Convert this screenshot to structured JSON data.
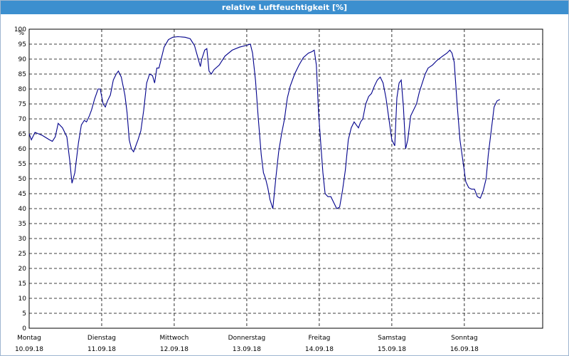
{
  "window": {
    "title": "relative Luftfeuchtigkeit [%]"
  },
  "chart_data": {
    "type": "line",
    "title": "relative Luftfeuchtigkeit [%]",
    "y_unit_label": "%",
    "ylim": [
      0,
      100
    ],
    "y_ticks": [
      "0",
      "5",
      "10",
      "15",
      "20",
      "25",
      "30",
      "35",
      "40",
      "45",
      "50",
      "55",
      "60",
      "65",
      "70",
      "75",
      "80",
      "85",
      "90",
      "95",
      "100"
    ],
    "x_days": [
      {
        "day": "Montag",
        "date": "10.09.18"
      },
      {
        "day": "Dienstag",
        "date": "11.09.18"
      },
      {
        "day": "Mittwoch",
        "date": "12.09.18"
      },
      {
        "day": "Donnerstag",
        "date": "13.09.18"
      },
      {
        "day": "Freitag",
        "date": "14.09.18"
      },
      {
        "day": "Samstag",
        "date": "15.09.18"
      },
      {
        "day": "Sonntag",
        "date": "16.09.18"
      }
    ],
    "xlim_days": [
      0,
      7.08
    ],
    "grid": true,
    "line_color": "#00008b",
    "series": [
      {
        "points": [
          [
            0.0,
            65
          ],
          [
            0.03,
            63
          ],
          [
            0.08,
            65.5
          ],
          [
            0.18,
            64.5
          ],
          [
            0.28,
            63
          ],
          [
            0.32,
            62.5
          ],
          [
            0.36,
            64
          ],
          [
            0.4,
            68.5
          ],
          [
            0.46,
            67
          ],
          [
            0.52,
            64
          ],
          [
            0.56,
            56
          ],
          [
            0.59,
            48.5
          ],
          [
            0.63,
            52
          ],
          [
            0.68,
            62
          ],
          [
            0.72,
            68
          ],
          [
            0.76,
            69.5
          ],
          [
            0.79,
            69
          ],
          [
            0.83,
            71
          ],
          [
            0.86,
            73
          ],
          [
            0.9,
            76.5
          ],
          [
            0.95,
            80
          ],
          [
            0.98,
            80
          ],
          [
            1.02,
            75
          ],
          [
            1.05,
            74
          ],
          [
            1.08,
            76
          ],
          [
            1.12,
            78
          ],
          [
            1.16,
            83
          ],
          [
            1.2,
            85
          ],
          [
            1.23,
            86
          ],
          [
            1.27,
            84
          ],
          [
            1.32,
            78
          ],
          [
            1.35,
            72
          ],
          [
            1.38,
            63
          ],
          [
            1.41,
            60
          ],
          [
            1.44,
            59
          ],
          [
            1.47,
            61
          ],
          [
            1.5,
            63
          ],
          [
            1.54,
            66
          ],
          [
            1.58,
            73
          ],
          [
            1.62,
            82
          ],
          [
            1.66,
            85
          ],
          [
            1.7,
            84.5
          ],
          [
            1.73,
            82
          ],
          [
            1.76,
            87
          ],
          [
            1.79,
            87
          ],
          [
            1.82,
            90
          ],
          [
            1.86,
            94
          ],
          [
            1.92,
            96.5
          ],
          [
            1.98,
            97.3
          ],
          [
            2.05,
            97.5
          ],
          [
            2.15,
            97.3
          ],
          [
            2.22,
            96.8
          ],
          [
            2.28,
            94.5
          ],
          [
            2.32,
            91
          ],
          [
            2.36,
            87.5
          ],
          [
            2.38,
            90
          ],
          [
            2.42,
            93
          ],
          [
            2.45,
            93.5
          ],
          [
            2.48,
            86
          ],
          [
            2.51,
            85
          ],
          [
            2.55,
            86.5
          ],
          [
            2.62,
            88
          ],
          [
            2.7,
            91
          ],
          [
            2.8,
            93
          ],
          [
            2.9,
            94
          ],
          [
            2.98,
            94.5
          ],
          [
            3.05,
            95
          ],
          [
            3.08,
            92
          ],
          [
            3.12,
            83
          ],
          [
            3.16,
            70
          ],
          [
            3.2,
            58
          ],
          [
            3.23,
            52
          ],
          [
            3.26,
            50
          ],
          [
            3.29,
            47
          ],
          [
            3.32,
            43
          ],
          [
            3.36,
            40
          ],
          [
            3.4,
            50
          ],
          [
            3.44,
            59
          ],
          [
            3.48,
            65
          ],
          [
            3.52,
            70
          ],
          [
            3.56,
            77
          ],
          [
            3.6,
            81
          ],
          [
            3.66,
            85
          ],
          [
            3.72,
            88
          ],
          [
            3.78,
            90.5
          ],
          [
            3.85,
            92
          ],
          [
            3.9,
            92.5
          ],
          [
            3.93,
            93
          ],
          [
            3.96,
            88
          ],
          [
            3.99,
            72
          ],
          [
            4.02,
            62
          ],
          [
            4.05,
            52
          ],
          [
            4.08,
            45
          ],
          [
            4.12,
            44
          ],
          [
            4.16,
            44
          ],
          [
            4.2,
            42
          ],
          [
            4.24,
            40
          ],
          [
            4.28,
            40.5
          ],
          [
            4.32,
            46
          ],
          [
            4.36,
            53
          ],
          [
            4.4,
            63
          ],
          [
            4.44,
            67
          ],
          [
            4.48,
            69
          ],
          [
            4.51,
            68
          ],
          [
            4.54,
            67
          ],
          [
            4.57,
            69
          ],
          [
            4.6,
            70
          ],
          [
            4.64,
            75
          ],
          [
            4.68,
            77.5
          ],
          [
            4.72,
            78.5
          ],
          [
            4.76,
            81
          ],
          [
            4.8,
            83
          ],
          [
            4.84,
            84
          ],
          [
            4.88,
            82
          ],
          [
            4.92,
            77
          ],
          [
            4.96,
            70
          ],
          [
            5.0,
            63
          ],
          [
            5.04,
            61
          ],
          [
            5.07,
            77
          ],
          [
            5.1,
            82
          ],
          [
            5.13,
            83
          ],
          [
            5.16,
            74
          ],
          [
            5.19,
            60
          ],
          [
            5.22,
            63
          ],
          [
            5.26,
            71
          ],
          [
            5.3,
            73
          ],
          [
            5.34,
            75
          ],
          [
            5.38,
            79
          ],
          [
            5.42,
            82
          ],
          [
            5.46,
            85
          ],
          [
            5.5,
            87
          ],
          [
            5.56,
            88
          ],
          [
            5.62,
            89.5
          ],
          [
            5.7,
            91
          ],
          [
            5.76,
            92
          ],
          [
            5.8,
            93
          ],
          [
            5.83,
            92
          ],
          [
            5.86,
            89
          ],
          [
            5.9,
            75
          ],
          [
            5.94,
            63
          ],
          [
            5.98,
            56
          ],
          [
            6.02,
            49
          ],
          [
            6.06,
            47
          ],
          [
            6.1,
            46.5
          ],
          [
            6.14,
            46.5
          ],
          [
            6.18,
            44
          ],
          [
            6.22,
            43.5
          ],
          [
            6.26,
            46
          ],
          [
            6.3,
            50
          ],
          [
            6.33,
            58
          ],
          [
            6.37,
            66
          ],
          [
            6.41,
            74
          ],
          [
            6.45,
            76
          ],
          [
            6.49,
            76.5
          ]
        ]
      }
    ]
  }
}
